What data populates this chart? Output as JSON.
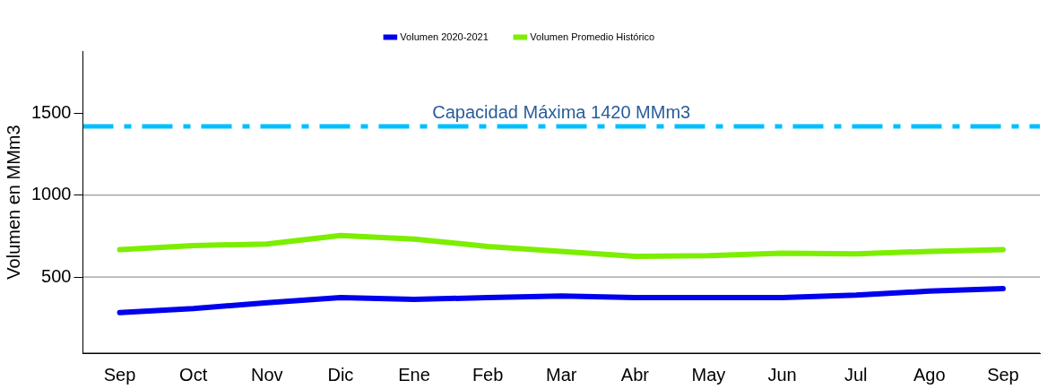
{
  "chart_data": {
    "type": "line",
    "ylabel": "Volumen en MMm3",
    "categories": [
      "Sep",
      "Oct",
      "Nov",
      "Dic",
      "Ene",
      "Feb",
      "Mar",
      "Abr",
      "May",
      "Jun",
      "Jul",
      "Ago",
      "Sep"
    ],
    "series": [
      {
        "name": "Volumen 2020-2021",
        "color": "#0000ee",
        "values": [
          283,
          308,
          343,
          374,
          364,
          374,
          384,
          374,
          374,
          374,
          389,
          414,
          429
        ]
      },
      {
        "name": "Volumen Promedio Histórico",
        "color": "#7cee00",
        "values": [
          667,
          692,
          702,
          753,
          732,
          687,
          657,
          626,
          631,
          646,
          641,
          657,
          667
        ]
      }
    ],
    "ylim": [
      35,
      1880
    ],
    "yticks": [
      500,
      1000,
      1500
    ],
    "ref_lines": [
      {
        "axis": "y",
        "value": 1420,
        "label": "Capacidad Máxima 1420 MMm3",
        "color": "#00bfff",
        "line_style": "dashdot"
      },
      {
        "axis": "y",
        "value": 500,
        "label": null,
        "color": "#808080",
        "line_style": "solid"
      },
      {
        "axis": "y",
        "value": 1000,
        "label": null,
        "color": "#808080",
        "line_style": "solid"
      }
    ],
    "legend": "top",
    "marker": "none",
    "line_style": "solid"
  }
}
